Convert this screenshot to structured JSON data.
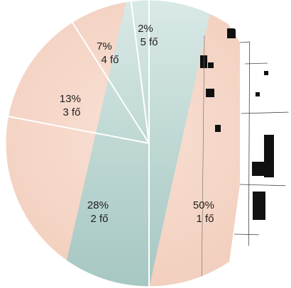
{
  "chart_data": {
    "type": "pie",
    "start": "top, clockwise",
    "slices": [
      {
        "value": 50,
        "pct_label": "50%",
        "count_label": "1 fő"
      },
      {
        "value": 28,
        "pct_label": "28%",
        "count_label": "2 fő"
      },
      {
        "value": 13,
        "pct_label": "13%",
        "count_label": "3 fő"
      },
      {
        "value": 7,
        "pct_label": "7%",
        "count_label": "4 fő"
      },
      {
        "value": 2,
        "pct_label": "2%",
        "count_label": "5 fő"
      }
    ],
    "legend": "none",
    "colors": {
      "salmon": "#f5d7c9",
      "salmon_dark": "#efc4b2",
      "teal": "#cfe2df",
      "teal_dark": "#a9c9c4",
      "divider": "#ffffff",
      "building": "#111111"
    }
  }
}
